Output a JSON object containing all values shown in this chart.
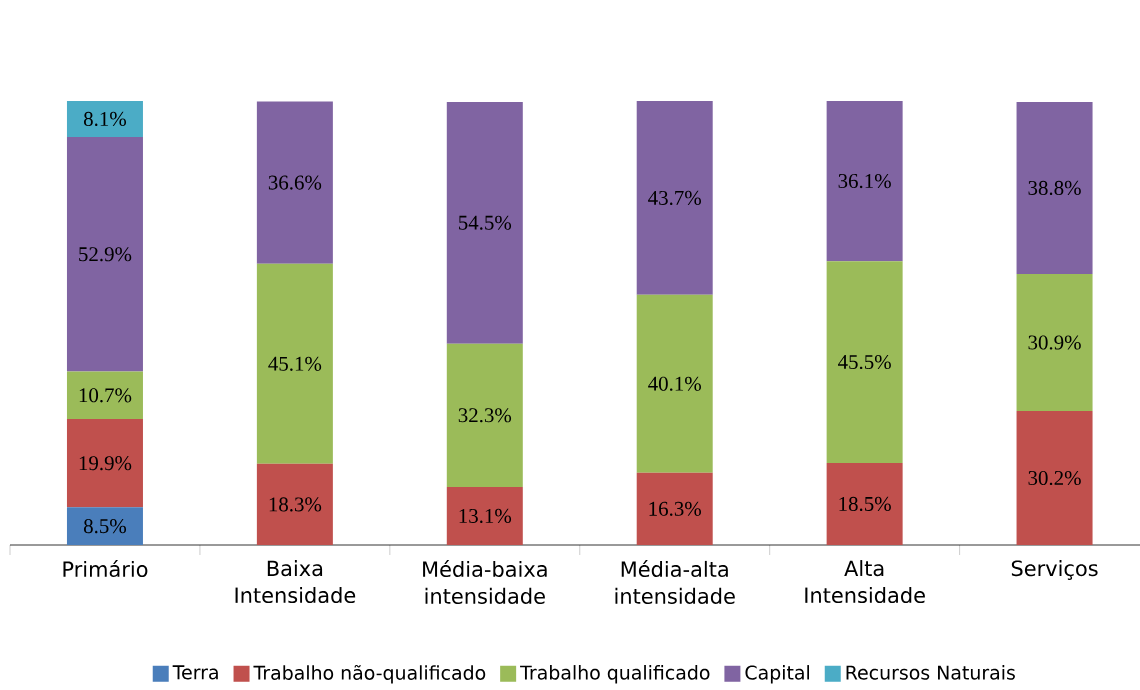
{
  "chart_data": {
    "type": "bar",
    "stacked": true,
    "legend": "bottom",
    "categories": [
      "Primário",
      "Baixa Intensidade",
      "Média-baixa intensidade",
      "Média-alta intensidade",
      "Alta Intensidade",
      "Serviços"
    ],
    "series": [
      {
        "name": "Terra",
        "color": "#4a7ebb",
        "values": [
          8.5,
          null,
          null,
          null,
          null,
          null
        ],
        "value_labels": [
          "8.5%",
          null,
          null,
          null,
          null,
          null
        ]
      },
      {
        "name": "Trabalho não-qualificado",
        "color": "#c0504d",
        "values": [
          19.9,
          18.3,
          13.1,
          16.3,
          18.5,
          30.2
        ],
        "value_labels": [
          "19.9%",
          "18.3%",
          "13.1%",
          "16.3%",
          "18.5%",
          "30.2%"
        ]
      },
      {
        "name": "Trabalho qualificado",
        "color": "#9bbb59",
        "values": [
          10.7,
          45.1,
          32.3,
          40.1,
          45.5,
          30.9
        ],
        "value_labels": [
          "10.7%",
          "45.1%",
          "32.3%",
          "40.1%",
          "45.5%",
          "30.9%"
        ]
      },
      {
        "name": "Capital",
        "color": "#8064a2",
        "values": [
          52.9,
          36.6,
          54.5,
          43.7,
          36.1,
          38.8
        ],
        "value_labels": [
          "52.9%",
          "36.6%",
          "54.5%",
          "43.7%",
          "36.1%",
          "38.8%"
        ]
      },
      {
        "name": "Recursos Naturais",
        "color": "#4bacc6",
        "values": [
          8.1,
          null,
          null,
          null,
          null,
          null
        ],
        "value_labels": [
          "8.1%",
          null,
          null,
          null,
          null,
          null
        ]
      }
    ]
  }
}
